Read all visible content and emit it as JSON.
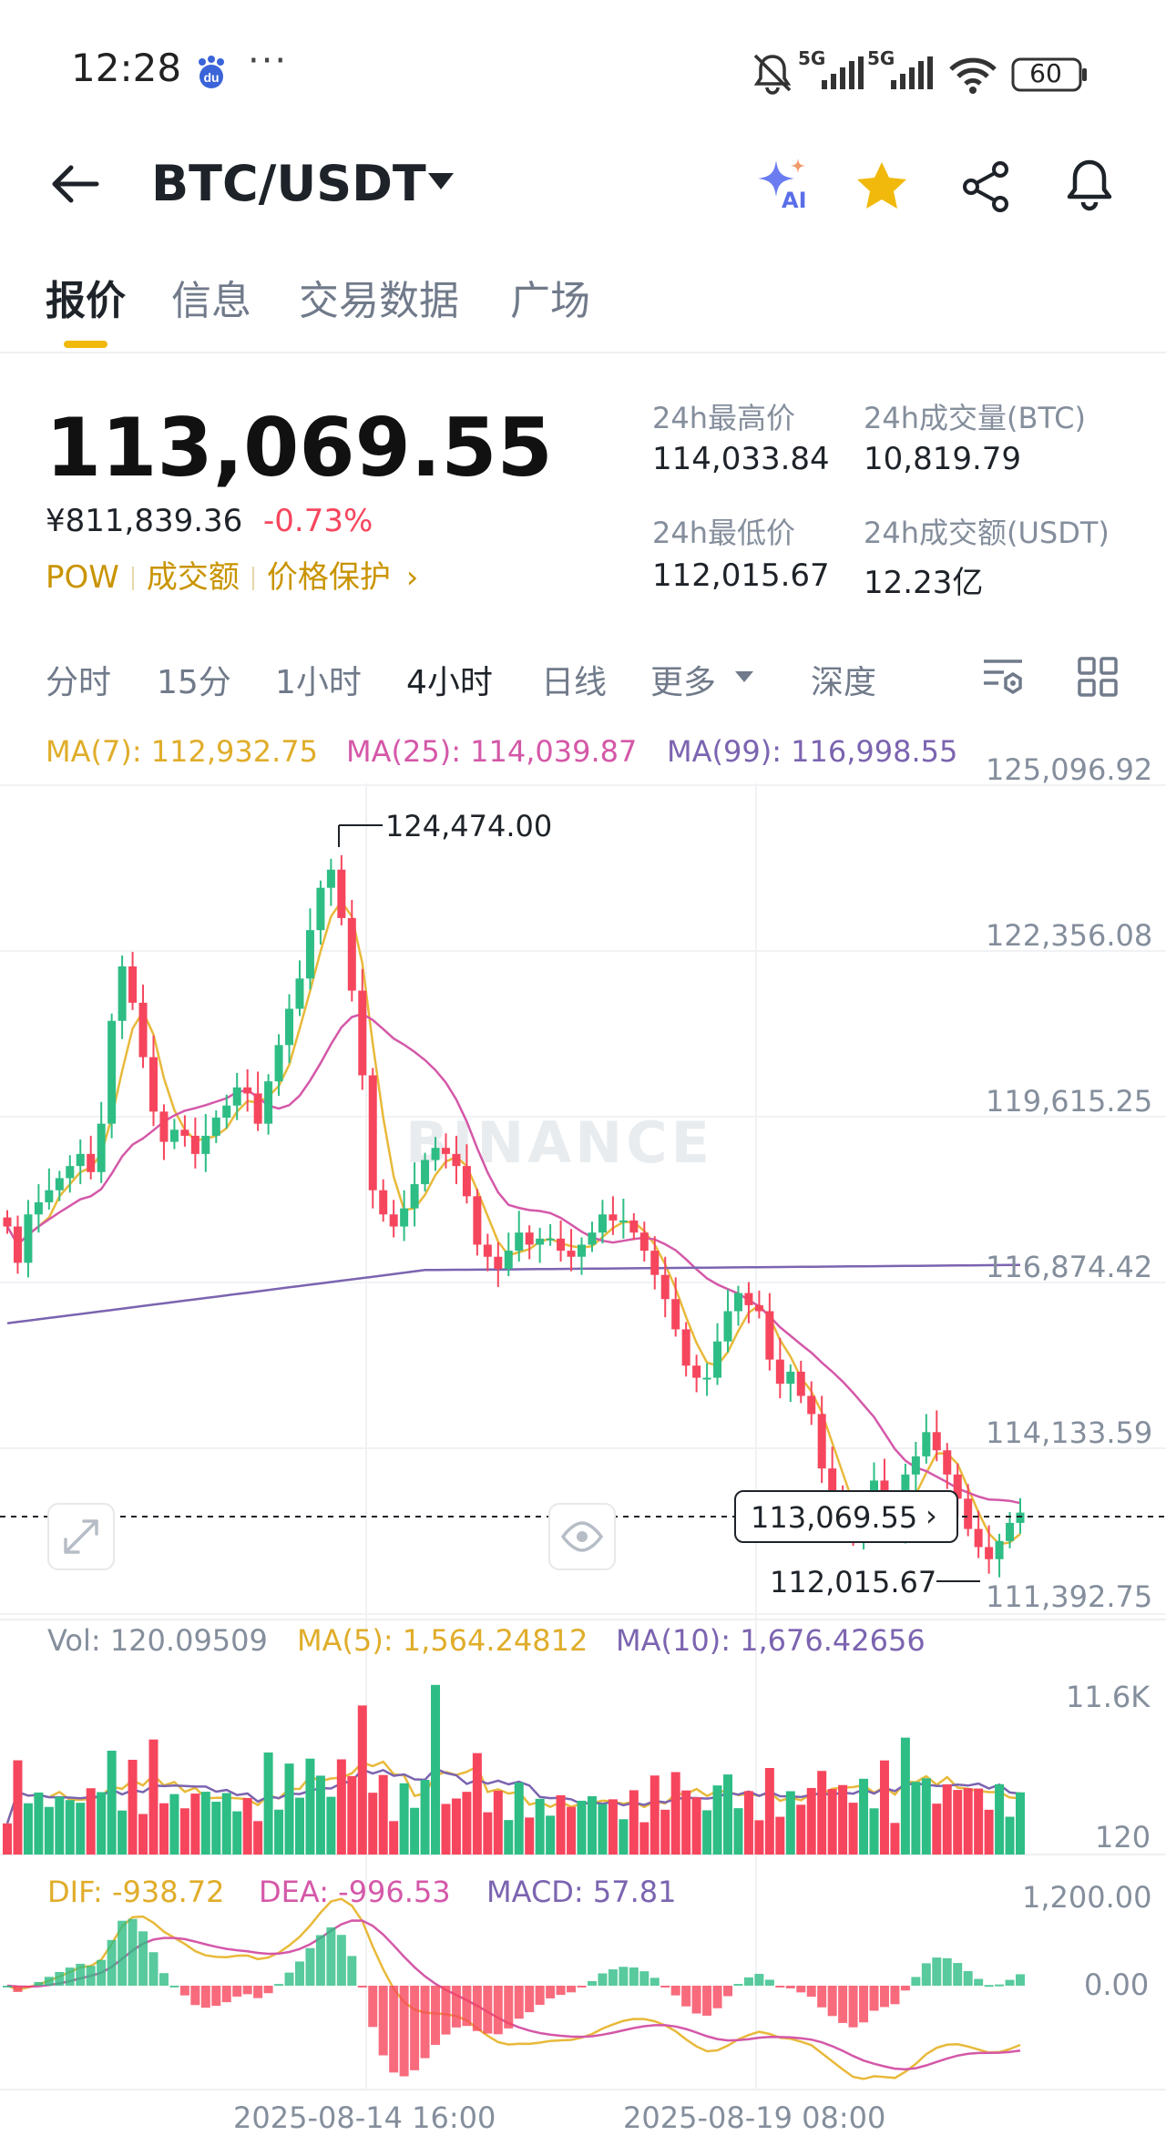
{
  "status_bar": {
    "time": "12:28",
    "dots": "···",
    "net1": "5G",
    "net2": "5G",
    "battery": "60",
    "icons": [
      "baidu-icon",
      "mute-bell-icon",
      "signal-icon",
      "wifi-icon",
      "battery-icon"
    ]
  },
  "header": {
    "title": "BTC/USDT",
    "icons": [
      "back-arrow-icon",
      "caret-down-icon",
      "ai-sparkle-icon",
      "star-icon",
      "share-icon",
      "bell-icon"
    ],
    "ai_label": "AI",
    "accent": "#f0b90b"
  },
  "tabs": [
    {
      "label": "报价",
      "active": true
    },
    {
      "label": "信息",
      "active": false
    },
    {
      "label": "交易数据",
      "active": false
    },
    {
      "label": "广场",
      "active": false
    }
  ],
  "price": {
    "last": "113,069.55",
    "cny": "¥811,839.36",
    "change": "-0.73%",
    "tag_pow": "POW",
    "tag_volume": "成交额",
    "tag_protect": "价格保护",
    "tag_arrow": "›"
  },
  "stats": {
    "high_label": "24h最高价",
    "high_value": "114,033.84",
    "vol_btc_label": "24h成交量(BTC)",
    "vol_btc_value": "10,819.79",
    "low_label": "24h最低价",
    "low_value": "112,015.67",
    "vol_usdt_label": "24h成交额(USDT)",
    "vol_usdt_value": "12.23亿"
  },
  "periods": [
    {
      "label": "分时",
      "active": false
    },
    {
      "label": "15分",
      "active": false
    },
    {
      "label": "1小时",
      "active": false
    },
    {
      "label": "4小时",
      "active": true
    },
    {
      "label": "日线",
      "active": false
    },
    {
      "label": "更多",
      "active": false
    },
    {
      "label": "深度",
      "active": false
    }
  ],
  "chart": {
    "ma7": "MA(7): 112,932.75",
    "ma25": "MA(25): 114,039.87",
    "ma99": "MA(99): 116,998.55",
    "price_axis": [
      "125,096.92",
      "122,356.08",
      "119,615.25",
      "116,874.42",
      "114,133.59",
      "111,392.75"
    ],
    "high_marker": "124,474.00",
    "low_marker": "112,015.67",
    "current_price_tag": "113,069.55",
    "current_price_arrow": "›",
    "watermark": "BINANCE",
    "vol": "Vol: 120.09509",
    "vol_ma5": "MA(5): 1,564.24812",
    "vol_ma10": "MA(10): 1,676.42656",
    "vol_axis_top": "11.6K",
    "vol_axis_bottom": "120",
    "dif": "DIF: -938.72",
    "dea": "DEA: -996.53",
    "macd": "MACD: 57.81",
    "macd_axis_top": "1,200.00",
    "macd_axis_zero": "0.00",
    "time_labels": [
      "2025-08-14 16:00",
      "2025-08-19 08:00"
    ],
    "colors": {
      "up": "#2ebd85",
      "down": "#f6465d",
      "ma7": "#e8b93a",
      "ma25": "#d458a8",
      "ma99": "#7b64b0"
    }
  }
}
